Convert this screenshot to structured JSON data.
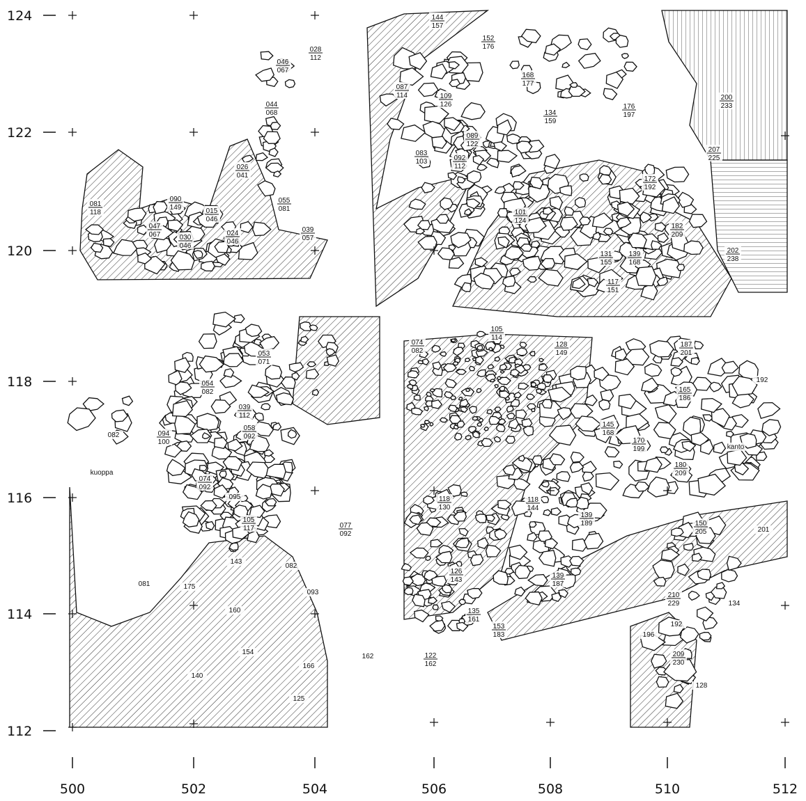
{
  "map": {
    "y_labels": [
      124,
      122,
      120,
      118,
      116,
      114,
      112
    ],
    "x_labels": [
      500,
      502,
      504,
      506,
      508,
      510,
      512
    ],
    "labels": [
      [
        "046",
        "067"
      ],
      [
        "028",
        "112"
      ],
      [
        "044",
        "068"
      ],
      [
        "026",
        "041"
      ],
      [
        "081",
        "118"
      ],
      [
        "090",
        "149"
      ],
      [
        "015",
        "046"
      ],
      [
        "047",
        "067"
      ],
      [
        "030",
        "046"
      ],
      [
        "024",
        "046"
      ],
      [
        "055",
        "081"
      ],
      [
        "039",
        "057"
      ],
      [
        "144",
        "157"
      ],
      [
        "152",
        "176"
      ],
      [
        "109",
        "126"
      ],
      [
        "087",
        "114"
      ],
      [
        "134",
        "159"
      ],
      [
        "168",
        "177"
      ],
      [
        "089",
        "122"
      ],
      [
        "092",
        "112"
      ],
      [
        "083",
        "103"
      ],
      [
        "176",
        "197"
      ],
      [
        "200",
        "233"
      ],
      [
        "207",
        "225"
      ],
      [
        "172",
        "192"
      ],
      [
        "101",
        "124"
      ],
      [
        "131",
        "155"
      ],
      [
        "139",
        "168"
      ],
      [
        "182",
        "209"
      ],
      [
        "202",
        "238"
      ],
      [
        "117",
        "151"
      ],
      [
        "053",
        "071"
      ],
      [
        "054",
        "082"
      ],
      [
        "039",
        "112"
      ],
      [
        "058",
        "092"
      ],
      [
        "094",
        "100"
      ],
      "082",
      [
        "074",
        "092"
      ],
      "095",
      [
        "105",
        "117"
      ],
      [
        "077",
        "092"
      ],
      "143",
      "082",
      "081",
      "175",
      "093",
      "160",
      "154",
      "140",
      "166",
      "162",
      "125",
      "kuoppa",
      [
        "105",
        "114"
      ],
      [
        "074",
        "082"
      ],
      [
        "128",
        "149"
      ],
      [
        "187",
        "201"
      ],
      "192",
      [
        "165",
        "186"
      ],
      [
        "145",
        "168"
      ],
      [
        "170",
        "199"
      ],
      [
        "180",
        "209"
      ],
      "kanto",
      [
        "118",
        "144"
      ],
      [
        "139",
        "189"
      ],
      "201",
      [
        "150",
        "205"
      ],
      [
        "139",
        "187"
      ],
      [
        "135",
        "161"
      ],
      [
        "210",
        "229"
      ],
      "192",
      "196",
      [
        "209",
        "230"
      ],
      "134",
      "128",
      [
        "153",
        "183"
      ],
      [
        "122",
        "162"
      ],
      [
        "126",
        "143"
      ],
      [
        "118",
        "130"
      ]
    ]
  }
}
